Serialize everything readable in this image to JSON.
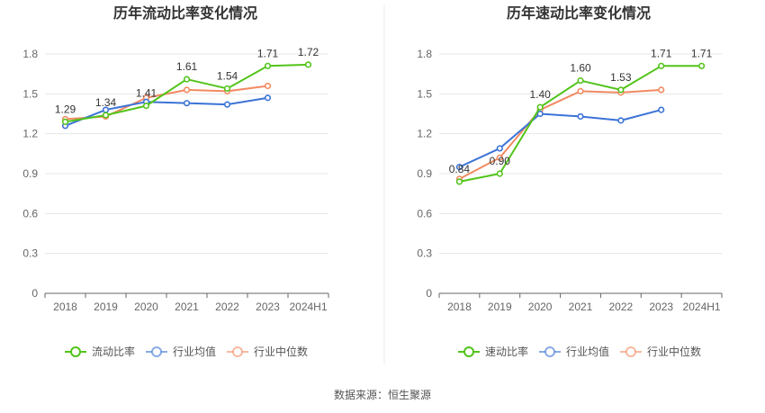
{
  "chart_data": [
    {
      "type": "line",
      "title": "历年流动比率变化情况",
      "categories": [
        "2018",
        "2019",
        "2020",
        "2021",
        "2022",
        "2023",
        "2024H1"
      ],
      "ylim": [
        0,
        1.8
      ],
      "yticks": [
        "0",
        "0.3",
        "0.6",
        "0.9",
        "1.2",
        "1.5",
        "1.8"
      ],
      "grid": true,
      "legend_position": "bottom",
      "series": [
        {
          "name": "流动比率",
          "color": "#52c41a",
          "values": [
            1.29,
            1.34,
            1.41,
            1.61,
            1.54,
            1.71,
            1.72
          ],
          "labels": [
            "1.29",
            "1.34",
            "1.41",
            "1.61",
            "1.54",
            "1.71",
            "1.72"
          ]
        },
        {
          "name": "行业均值",
          "color": "#3b73d6",
          "values": [
            1.26,
            1.38,
            1.44,
            1.43,
            1.42,
            1.47,
            null
          ]
        },
        {
          "name": "行业中位数",
          "color": "#f28a63",
          "values": [
            1.31,
            1.33,
            1.47,
            1.53,
            1.52,
            1.56,
            null
          ]
        }
      ]
    },
    {
      "type": "line",
      "title": "历年速动比率变化情况",
      "categories": [
        "2018",
        "2019",
        "2020",
        "2021",
        "2022",
        "2023",
        "2024H1"
      ],
      "ylim": [
        0,
        1.8
      ],
      "yticks": [
        "0",
        "0.3",
        "0.6",
        "0.9",
        "1.2",
        "1.5",
        "1.8"
      ],
      "grid": true,
      "legend_position": "bottom",
      "series": [
        {
          "name": "速动比率",
          "color": "#52c41a",
          "values": [
            0.84,
            0.9,
            1.4,
            1.6,
            1.53,
            1.71,
            1.71
          ],
          "labels": [
            "0.84",
            "0.90",
            "1.40",
            "1.60",
            "1.53",
            "1.71",
            "1.71"
          ]
        },
        {
          "name": "行业均值",
          "color": "#3b73d6",
          "values": [
            0.95,
            1.09,
            1.35,
            1.33,
            1.3,
            1.38,
            null
          ]
        },
        {
          "name": "行业中位数",
          "color": "#f28a63",
          "values": [
            0.86,
            1.02,
            1.38,
            1.52,
            1.51,
            1.53,
            null
          ]
        }
      ]
    }
  ],
  "footer": {
    "source": "数据来源：恒生聚源"
  }
}
